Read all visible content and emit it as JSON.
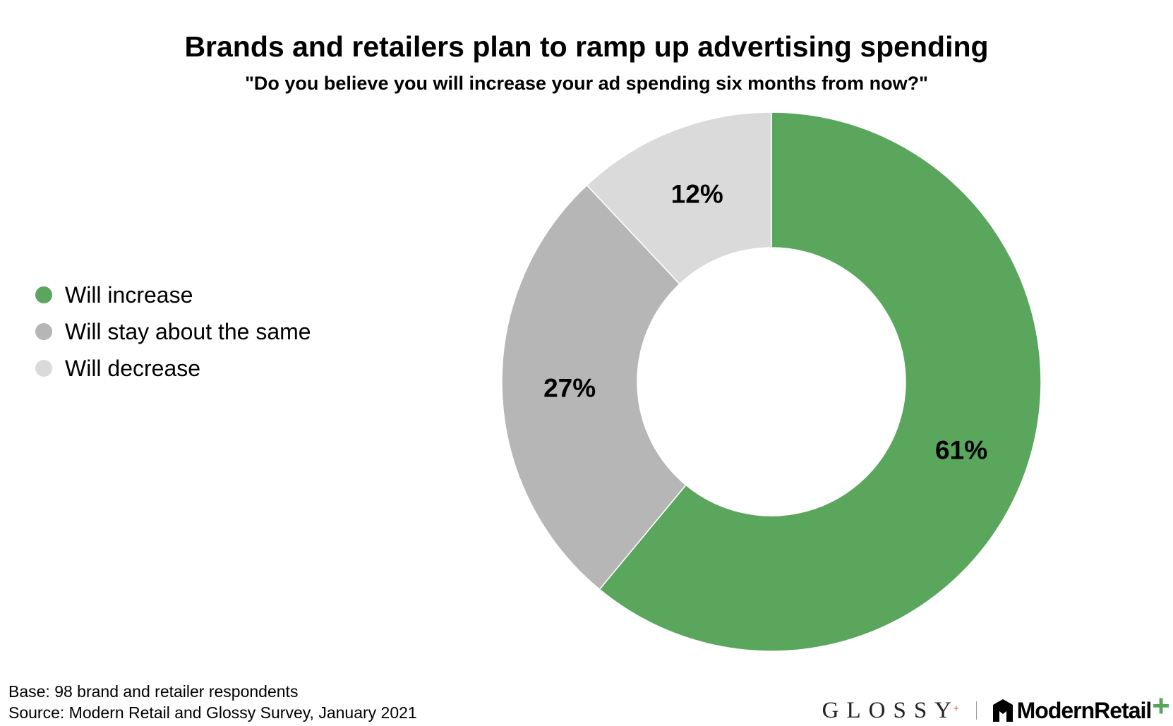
{
  "chart_data": {
    "type": "pie",
    "donut": true,
    "title": "Brands and retailers plan to ramp up advertising spending",
    "subtitle": "\"Do you believe you will increase your ad spending six months from now?\"",
    "categories": [
      "Will increase",
      "Will stay about the same",
      "Will decrease"
    ],
    "values": [
      61,
      27,
      12
    ],
    "labels": [
      "61%",
      "27%",
      "12%"
    ],
    "colors": [
      "#5aa65c",
      "#b6b6b6",
      "#dadada"
    ],
    "legend_position": "left",
    "start_angle": "12 o'clock",
    "direction": "clockwise"
  },
  "footnotes": {
    "base": "Base: 98 brand and retailer respondents",
    "source": "Source: Modern Retail and Glossy Survey, January 2021"
  },
  "logos": {
    "glossy": "GLOSSY",
    "glossy_plus": "+",
    "modern_retail": "ModernRetail",
    "modern_retail_plus": "+"
  }
}
